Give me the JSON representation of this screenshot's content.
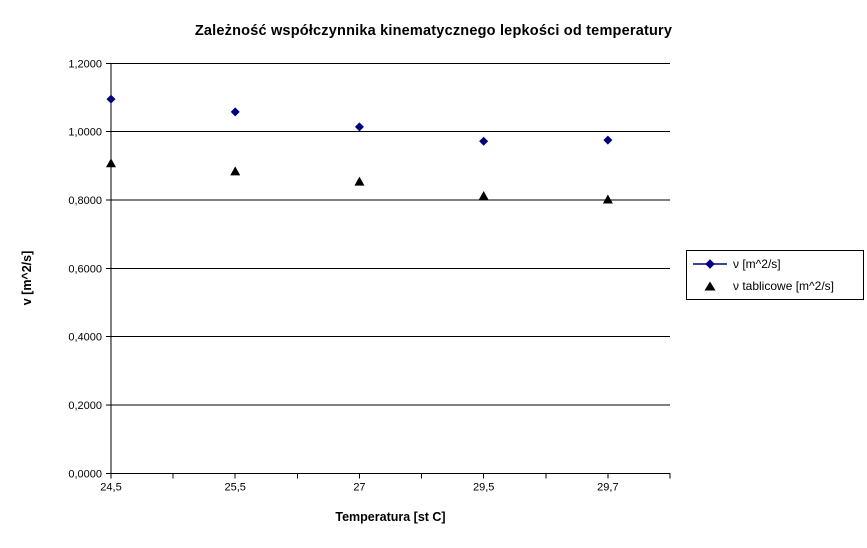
{
  "chart_data": {
    "type": "scatter",
    "title": "Zależność współczynnika kinematycznego lepkości od temperatury",
    "xlabel": "Temperatura [st C]",
    "ylabel": "v [m^2/s]",
    "categories": [
      "24,5",
      "25,5",
      "27",
      "29,5",
      "29,7"
    ],
    "series": [
      {
        "name": "ν [m^2/s]",
        "marker": "diamond",
        "color": "#000080",
        "legend_line": true,
        "values": [
          1.095,
          1.058,
          1.014,
          0.972,
          0.975
        ]
      },
      {
        "name": "ν tablicowe [m^2/s]",
        "marker": "triangle",
        "color": "#000000",
        "legend_line": false,
        "values": [
          0.909,
          0.885,
          0.855,
          0.813,
          0.803
        ]
      }
    ],
    "ylim": [
      0,
      1.2
    ],
    "ytick_step": 0.2,
    "ytick_labels": [
      "0,0000",
      "0,2000",
      "0,4000",
      "0,6000",
      "0,8000",
      "1,0000",
      "1,2000"
    ],
    "grid": true,
    "legend_position": "right",
    "axis_color": "#000000",
    "background": "#ffffff"
  }
}
